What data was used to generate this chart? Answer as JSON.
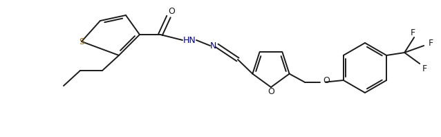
{
  "bg_color": "#ffffff",
  "line_color": "#1a1a1a",
  "bond_lw": 1.4,
  "label_S": "S",
  "label_O_furan": "O",
  "label_O_ether": "O",
  "label_HN": "HN",
  "label_N": "N",
  "label_CO": "O",
  "label_F1": "F",
  "label_F2": "F",
  "label_F3": "F",
  "S_color": "#8B6914",
  "N_color": "#00008B",
  "atom_color": "#1a1a1a"
}
